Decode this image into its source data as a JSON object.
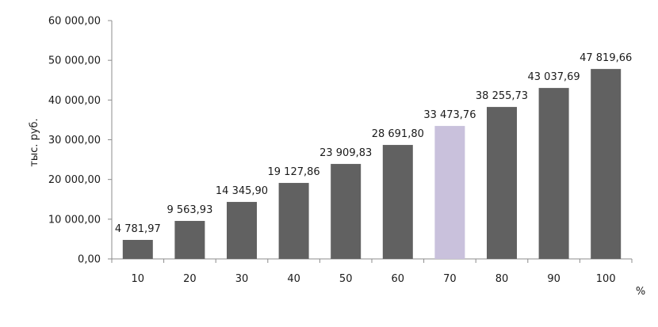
{
  "chart_data": {
    "type": "bar",
    "title": "",
    "xlabel": "%",
    "ylabel": "тыс. руб.",
    "categories": [
      "10",
      "20",
      "30",
      "40",
      "50",
      "60",
      "70",
      "80",
      "90",
      "100"
    ],
    "values": [
      4781.97,
      9563.93,
      14345.9,
      19127.86,
      23909.83,
      28691.8,
      33473.76,
      38255.73,
      43037.69,
      47819.66
    ],
    "value_labels": [
      "4 781,97",
      "9 563,93",
      "14 345,90",
      "19 127,86",
      "23 909,83",
      "28 691,80",
      "33 473,76",
      "38 255,73",
      "43 037,69",
      "47 819,66"
    ],
    "ylim": [
      0,
      60000
    ],
    "yticks": [
      0,
      10000,
      20000,
      30000,
      40000,
      50000,
      60000
    ],
    "ytick_labels": [
      "0,00",
      "10 000,00",
      "20 000,00",
      "30 000,00",
      "40 000,00",
      "50 000,00",
      "60 000,00"
    ],
    "grid": false,
    "legend": "none",
    "bar_color": "#616161",
    "highlight_index": 6,
    "highlight_color": "#c9c1dc",
    "axis_color": "#8c8c8c"
  }
}
